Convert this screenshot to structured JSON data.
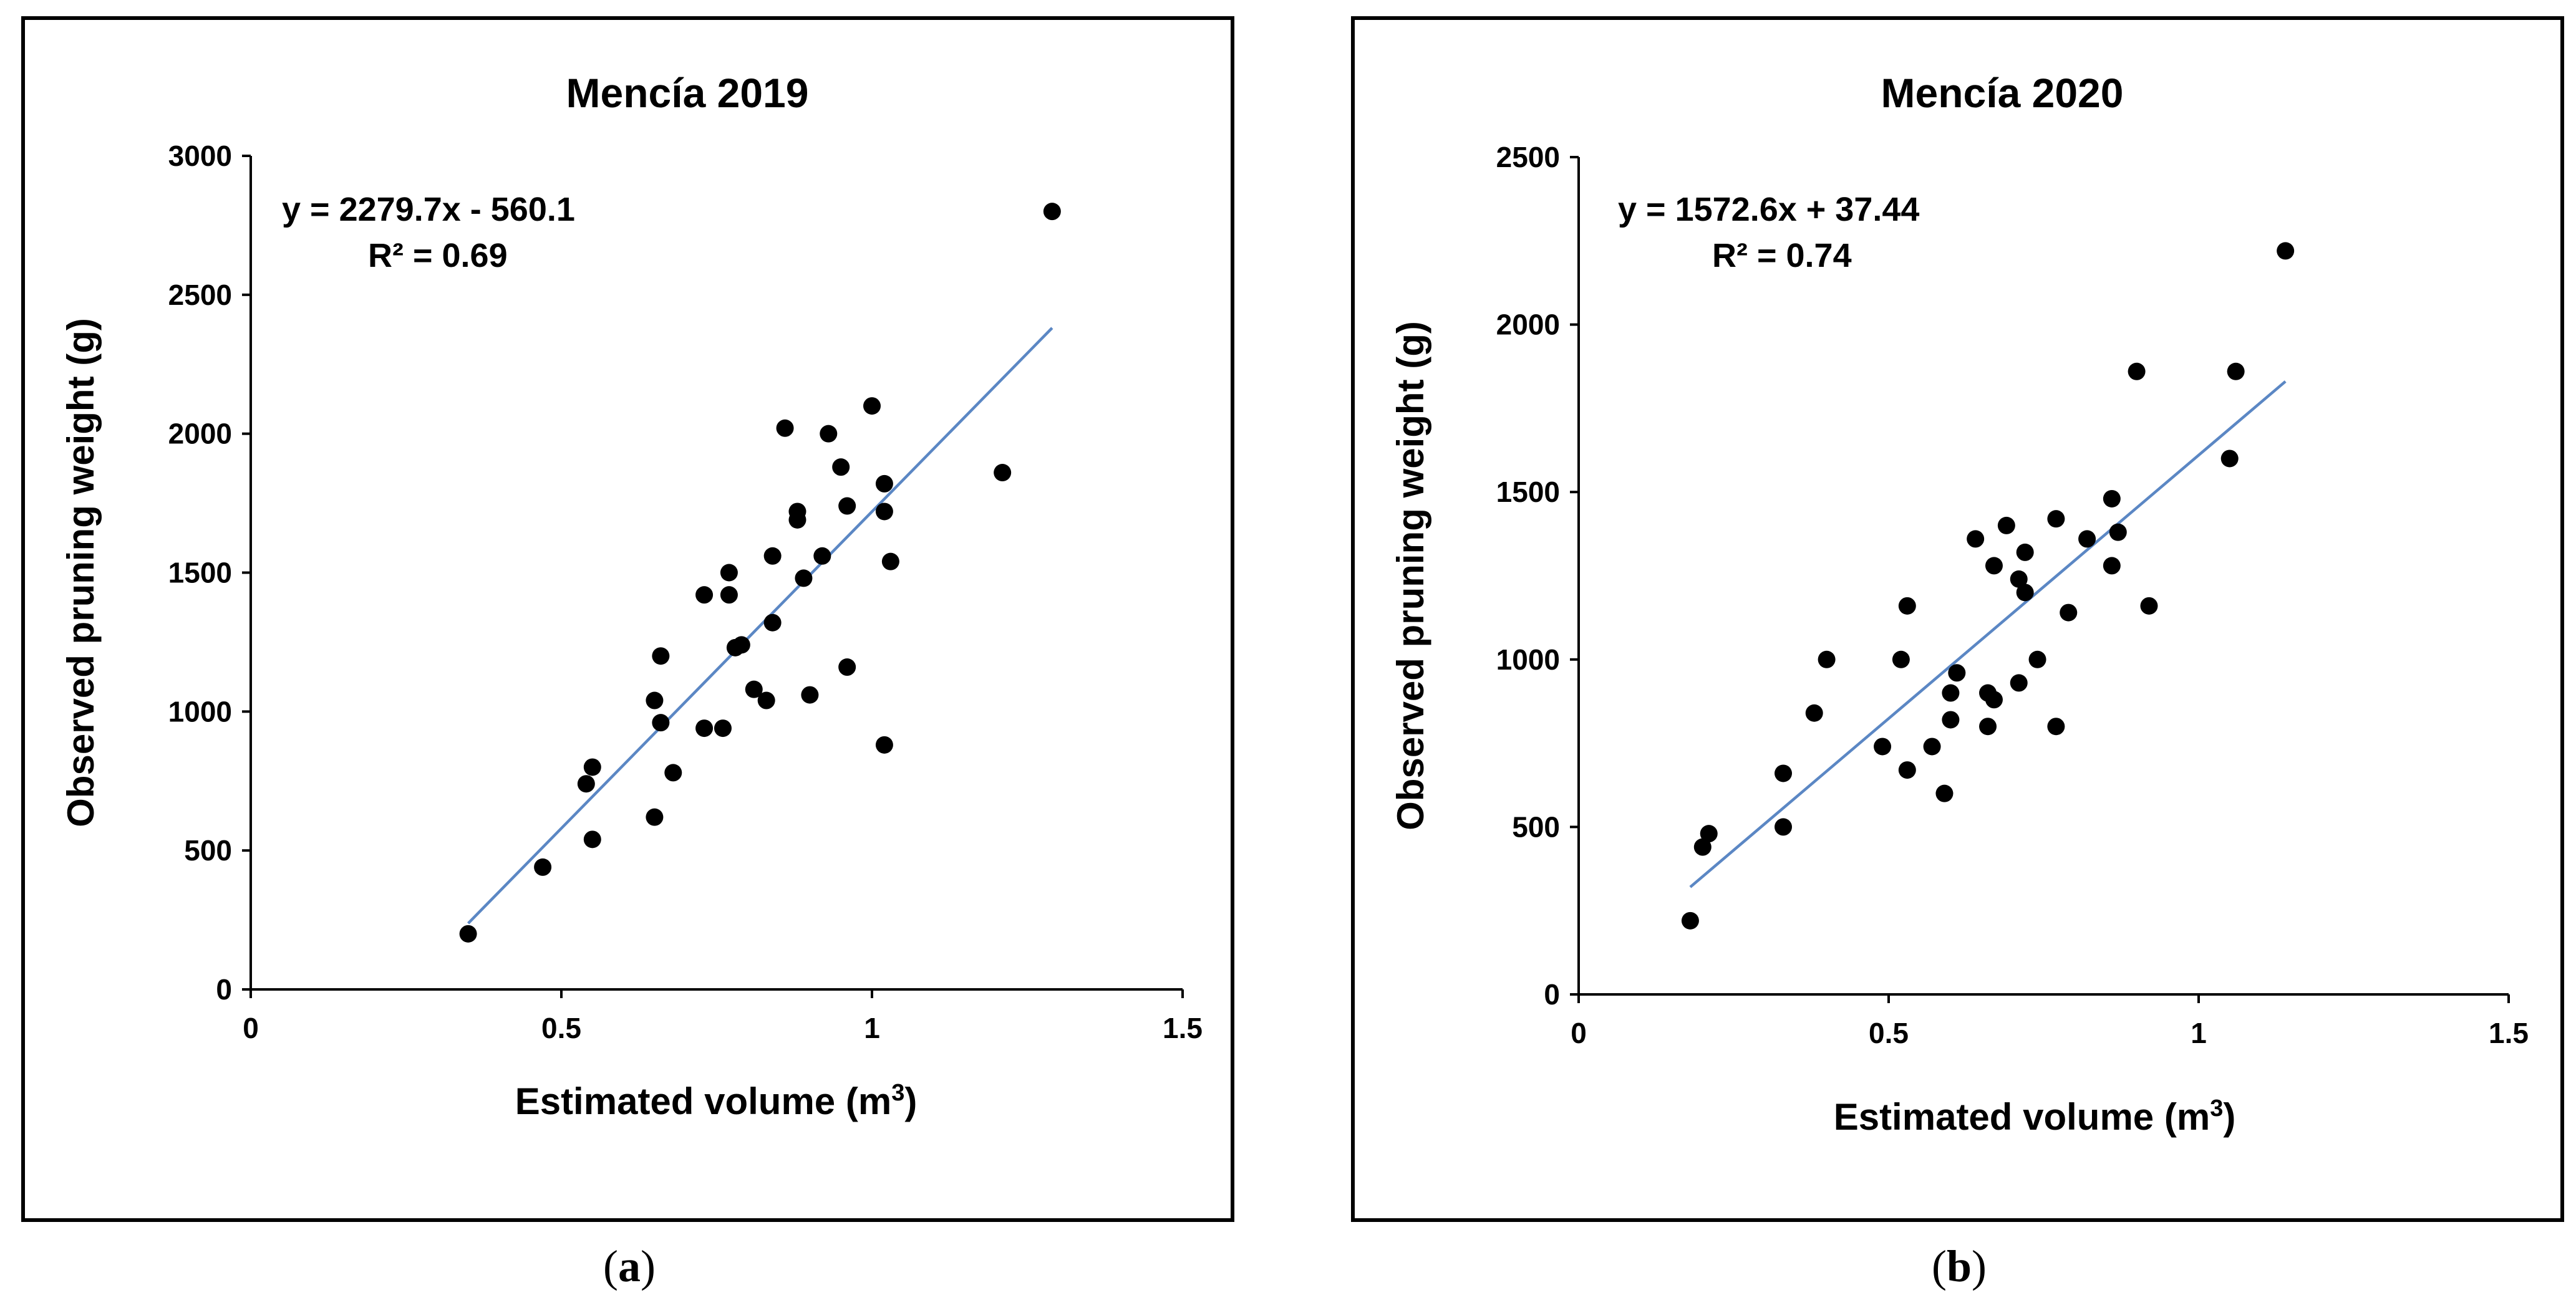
{
  "chart_data": [
    {
      "type": "scatter",
      "title": "Mencía 2019",
      "xlabel": "Estimated volume (m",
      "xlabel_sup": "3",
      "xlabel_end": ")",
      "ylabel": "Observed pruning weight (g)",
      "xlim": [
        0,
        1.5
      ],
      "ylim": [
        0,
        3000
      ],
      "xticks": [
        0,
        0.5,
        1,
        1.5
      ],
      "xtick_labels": [
        "0",
        "0.5",
        "1",
        "1.5"
      ],
      "yticks": [
        0,
        500,
        1000,
        1500,
        2000,
        2500,
        3000
      ],
      "ytick_labels": [
        "0",
        "500",
        "1000",
        "1500",
        "2000",
        "2500",
        "3000"
      ],
      "equation": "y = 2279.7x - 560.1",
      "r2": "R² = 0.69",
      "trendline": {
        "slope": 2279.7,
        "intercept": -560.1,
        "x_range": [
          0.35,
          1.29
        ],
        "color": "#5B87C4"
      },
      "point_color": "#000000",
      "caption": "a",
      "points": [
        [
          0.35,
          200
        ],
        [
          0.47,
          440
        ],
        [
          0.55,
          540
        ],
        [
          0.54,
          740
        ],
        [
          0.55,
          800
        ],
        [
          0.65,
          620
        ],
        [
          0.68,
          780
        ],
        [
          0.66,
          960
        ],
        [
          0.65,
          1040
        ],
        [
          0.66,
          1200
        ],
        [
          0.73,
          940
        ],
        [
          0.76,
          940
        ],
        [
          0.73,
          1420
        ],
        [
          0.77,
          1420
        ],
        [
          0.77,
          1500
        ],
        [
          0.78,
          1230
        ],
        [
          0.79,
          1240
        ],
        [
          0.81,
          1080
        ],
        [
          0.83,
          1040
        ],
        [
          0.84,
          1320
        ],
        [
          0.84,
          1560
        ],
        [
          0.86,
          2020
        ],
        [
          0.88,
          1720
        ],
        [
          0.88,
          1690
        ],
        [
          0.89,
          1480
        ],
        [
          0.9,
          1060
        ],
        [
          0.92,
          1560
        ],
        [
          0.93,
          2000
        ],
        [
          0.95,
          1880
        ],
        [
          0.96,
          1740
        ],
        [
          0.96,
          1160
        ],
        [
          1.0,
          2100
        ],
        [
          1.02,
          1820
        ],
        [
          1.02,
          1720
        ],
        [
          1.03,
          1540
        ],
        [
          1.02,
          880
        ],
        [
          1.21,
          1860
        ],
        [
          1.29,
          2800
        ]
      ]
    },
    {
      "type": "scatter",
      "title": "Mencía 2020",
      "xlabel": "Estimated volume (m",
      "xlabel_sup": "3",
      "xlabel_end": ")",
      "ylabel": "Observed pruning weight (g)",
      "xlim": [
        0,
        1.5
      ],
      "ylim": [
        0,
        2500
      ],
      "xticks": [
        0,
        0.5,
        1,
        1.5
      ],
      "xtick_labels": [
        "0",
        "0.5",
        "1",
        "1.5"
      ],
      "yticks": [
        0,
        500,
        1000,
        1500,
        2000,
        2500
      ],
      "ytick_labels": [
        "0",
        "500",
        "1000",
        "1500",
        "2000",
        "2500"
      ],
      "equation": "y = 1572.6x + 37.44",
      "r2": "R² = 0.74",
      "trendline": {
        "slope": 1572.6,
        "intercept": 37.44,
        "x_range": [
          0.18,
          1.14
        ],
        "color": "#5B87C4"
      },
      "point_color": "#000000",
      "caption": "b",
      "points": [
        [
          0.18,
          220
        ],
        [
          0.2,
          440
        ],
        [
          0.21,
          480
        ],
        [
          0.33,
          500
        ],
        [
          0.33,
          660
        ],
        [
          0.38,
          840
        ],
        [
          0.4,
          1000
        ],
        [
          0.49,
          740
        ],
        [
          0.52,
          1000
        ],
        [
          0.53,
          670
        ],
        [
          0.53,
          1160
        ],
        [
          0.57,
          740
        ],
        [
          0.59,
          600
        ],
        [
          0.6,
          820
        ],
        [
          0.6,
          900
        ],
        [
          0.61,
          960
        ],
        [
          0.64,
          1360
        ],
        [
          0.66,
          800
        ],
        [
          0.66,
          900
        ],
        [
          0.67,
          880
        ],
        [
          0.67,
          1280
        ],
        [
          0.69,
          1400
        ],
        [
          0.71,
          930
        ],
        [
          0.71,
          1240
        ],
        [
          0.72,
          1320
        ],
        [
          0.72,
          1200
        ],
        [
          0.74,
          1000
        ],
        [
          0.77,
          800
        ],
        [
          0.77,
          1420
        ],
        [
          0.79,
          1140
        ],
        [
          0.82,
          1360
        ],
        [
          0.86,
          1480
        ],
        [
          0.86,
          1280
        ],
        [
          0.87,
          1380
        ],
        [
          0.9,
          1860
        ],
        [
          0.92,
          1160
        ],
        [
          1.05,
          1600
        ],
        [
          1.06,
          1860
        ],
        [
          1.14,
          2220
        ]
      ]
    }
  ]
}
